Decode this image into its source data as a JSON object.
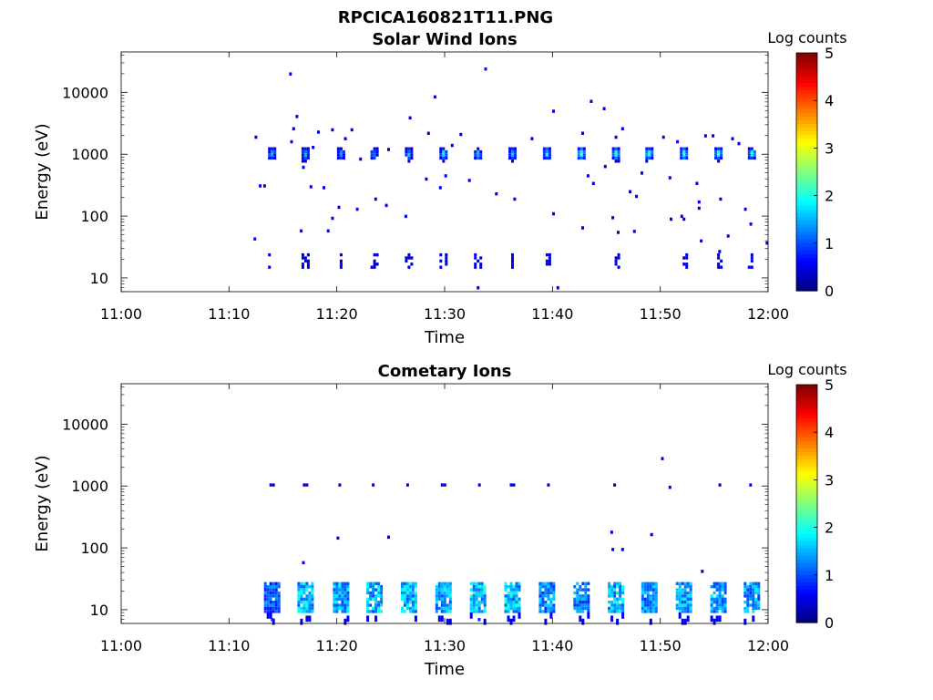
{
  "figure": {
    "title": "RPCICA160821T11.PNG"
  },
  "chart_data": [
    {
      "type": "heatmap",
      "title": "Solar Wind Ions",
      "xlabel": "Time",
      "ylabel": "Energy (eV)",
      "x_tick_labels": [
        "11:00",
        "11:10",
        "11:20",
        "11:30",
        "11:40",
        "11:50",
        "12:00"
      ],
      "x_range_minutes": [
        0,
        60
      ],
      "y_scale": "log",
      "y_tick_values": [
        10,
        100,
        1000,
        10000
      ],
      "y_tick_labels": [
        "10",
        "100",
        "1000",
        "10000"
      ],
      "y_range": [
        6,
        45000
      ],
      "colorbar": {
        "label": "Log counts",
        "range": [
          0,
          5
        ],
        "tick_labels": [
          "0",
          "1",
          "2",
          "3",
          "4",
          "5"
        ],
        "colormap": "jet"
      },
      "sweep_minutes": [
        14.0,
        17.1,
        20.4,
        23.5,
        26.7,
        29.9,
        33.1,
        36.3,
        39.5,
        42.7,
        45.9,
        49.0,
        52.2,
        55.4,
        58.5
      ],
      "main_band": {
        "energy_low": 800,
        "energy_high": 1300,
        "peak_log_counts": [
          1.9,
          1.8,
          1.6,
          1.5,
          1.8,
          2.0,
          2.0,
          1.9,
          2.1,
          2.5,
          2.4,
          2.5,
          2.3,
          2.5,
          2.2
        ]
      },
      "low_energy_band": {
        "energy_low": 15,
        "energy_high": 25,
        "log_counts": 0.5
      },
      "scatter_points": [
        {
          "t": 12.4,
          "e": 43,
          "c": 0.7
        },
        {
          "t": 12.5,
          "e": 1900,
          "c": 0.6
        },
        {
          "t": 12.9,
          "e": 310,
          "c": 0.5
        },
        {
          "t": 13.3,
          "e": 310,
          "c": 0.5
        },
        {
          "t": 15.7,
          "e": 20000,
          "c": 0.6
        },
        {
          "t": 15.8,
          "e": 1600,
          "c": 0.5
        },
        {
          "t": 16.0,
          "e": 2600,
          "c": 0.5
        },
        {
          "t": 16.3,
          "e": 4100,
          "c": 0.5
        },
        {
          "t": 16.7,
          "e": 58,
          "c": 0.5
        },
        {
          "t": 16.9,
          "e": 620,
          "c": 0.5
        },
        {
          "t": 17.6,
          "e": 300,
          "c": 0.5
        },
        {
          "t": 17.8,
          "e": 1300,
          "c": 0.5
        },
        {
          "t": 18.3,
          "e": 2300,
          "c": 0.5
        },
        {
          "t": 18.8,
          "e": 290,
          "c": 0.5
        },
        {
          "t": 19.2,
          "e": 58,
          "c": 0.5
        },
        {
          "t": 19.6,
          "e": 93,
          "c": 0.5
        },
        {
          "t": 19.6,
          "e": 2500,
          "c": 0.5
        },
        {
          "t": 20.2,
          "e": 140,
          "c": 0.5
        },
        {
          "t": 20.8,
          "e": 1800,
          "c": 0.5
        },
        {
          "t": 21.4,
          "e": 2500,
          "c": 0.5
        },
        {
          "t": 21.9,
          "e": 130,
          "c": 0.5
        },
        {
          "t": 22.2,
          "e": 840,
          "c": 0.5
        },
        {
          "t": 24.6,
          "e": 150,
          "c": 0.5
        },
        {
          "t": 24.8,
          "e": 1200,
          "c": 0.5
        },
        {
          "t": 26.4,
          "e": 100,
          "c": 0.5
        },
        {
          "t": 26.8,
          "e": 3900,
          "c": 0.5
        },
        {
          "t": 28.3,
          "e": 400,
          "c": 0.5
        },
        {
          "t": 28.5,
          "e": 2200,
          "c": 0.5
        },
        {
          "t": 29.1,
          "e": 8500,
          "c": 0.5
        },
        {
          "t": 29.6,
          "e": 290,
          "c": 0.5
        },
        {
          "t": 30.1,
          "e": 450,
          "c": 0.5
        },
        {
          "t": 30.7,
          "e": 1400,
          "c": 0.5
        },
        {
          "t": 31.5,
          "e": 2100,
          "c": 0.5
        },
        {
          "t": 32.3,
          "e": 380,
          "c": 0.5
        },
        {
          "t": 33.8,
          "e": 24000,
          "c": 0.7
        },
        {
          "t": 34.8,
          "e": 230,
          "c": 0.5
        },
        {
          "t": 36.5,
          "e": 190,
          "c": 0.5
        },
        {
          "t": 38.1,
          "e": 1800,
          "c": 0.5
        },
        {
          "t": 40.1,
          "e": 5000,
          "c": 0.5
        },
        {
          "t": 40.1,
          "e": 110,
          "c": 0.5
        },
        {
          "t": 42.8,
          "e": 65,
          "c": 0.3
        },
        {
          "t": 42.8,
          "e": 2200,
          "c": 0.5
        },
        {
          "t": 43.3,
          "e": 450,
          "c": 0.5
        },
        {
          "t": 43.6,
          "e": 7200,
          "c": 0.5
        },
        {
          "t": 43.8,
          "e": 340,
          "c": 0.5
        },
        {
          "t": 44.8,
          "e": 5500,
          "c": 0.5
        },
        {
          "t": 44.9,
          "e": 640,
          "c": 0.5
        },
        {
          "t": 45.6,
          "e": 95,
          "c": 0.5
        },
        {
          "t": 45.9,
          "e": 1900,
          "c": 0.5
        },
        {
          "t": 46.1,
          "e": 55,
          "c": 0.5
        },
        {
          "t": 46.5,
          "e": 2600,
          "c": 0.5
        },
        {
          "t": 47.2,
          "e": 250,
          "c": 0.5
        },
        {
          "t": 47.6,
          "e": 57,
          "c": 0.5
        },
        {
          "t": 47.8,
          "e": 210,
          "c": 0.5
        },
        {
          "t": 48.3,
          "e": 500,
          "c": 0.5
        },
        {
          "t": 50.3,
          "e": 1900,
          "c": 0.5
        },
        {
          "t": 50.9,
          "e": 420,
          "c": 0.5
        },
        {
          "t": 51.0,
          "e": 90,
          "c": 0.5
        },
        {
          "t": 51.6,
          "e": 1600,
          "c": 0.5
        },
        {
          "t": 52.0,
          "e": 100,
          "c": 0.5
        },
        {
          "t": 52.2,
          "e": 90,
          "c": 0.5
        },
        {
          "t": 53.4,
          "e": 340,
          "c": 0.5
        },
        {
          "t": 53.6,
          "e": 170,
          "c": 0.5
        },
        {
          "t": 53.6,
          "e": 135,
          "c": 0.5
        },
        {
          "t": 53.8,
          "e": 40,
          "c": 0.5
        },
        {
          "t": 54.2,
          "e": 2000,
          "c": 0.5
        },
        {
          "t": 54.9,
          "e": 2000,
          "c": 0.5
        },
        {
          "t": 55.5,
          "e": 27,
          "c": 0.5
        },
        {
          "t": 55.6,
          "e": 190,
          "c": 0.5
        },
        {
          "t": 56.3,
          "e": 48,
          "c": 0.5
        },
        {
          "t": 56.7,
          "e": 1800,
          "c": 0.5
        },
        {
          "t": 57.3,
          "e": 1500,
          "c": 0.5
        },
        {
          "t": 57.9,
          "e": 130,
          "c": 0.5
        },
        {
          "t": 58.4,
          "e": 75,
          "c": 0.5
        },
        {
          "t": 59.9,
          "e": 37,
          "c": 0.5
        },
        {
          "t": 33.1,
          "e": 7,
          "c": 0.5
        },
        {
          "t": 40.5,
          "e": 7,
          "c": 0.5
        },
        {
          "t": 23.6,
          "e": 190,
          "c": 0.5
        }
      ]
    },
    {
      "type": "heatmap",
      "title": "Cometary Ions",
      "xlabel": "Time",
      "ylabel": "Energy (eV)",
      "x_tick_labels": [
        "11:00",
        "11:10",
        "11:20",
        "11:30",
        "11:40",
        "11:50",
        "12:00"
      ],
      "x_range_minutes": [
        0,
        60
      ],
      "y_scale": "log",
      "y_tick_values": [
        10,
        100,
        1000,
        10000
      ],
      "y_tick_labels": [
        "10",
        "100",
        "1000",
        "10000"
      ],
      "y_range": [
        6,
        45000
      ],
      "colorbar": {
        "label": "Log counts",
        "range": [
          0,
          5
        ],
        "tick_labels": [
          "0",
          "1",
          "2",
          "3",
          "4",
          "5"
        ],
        "colormap": "jet"
      },
      "sweep_minutes": [
        14.0,
        17.1,
        20.4,
        23.5,
        26.7,
        29.9,
        33.1,
        36.3,
        39.5,
        42.7,
        45.9,
        49.0,
        52.2,
        55.4,
        58.5
      ],
      "main_band": {
        "energy_low": 960,
        "energy_high": 1100,
        "peak_log_counts": [
          0.7,
          0.6,
          0.6,
          0.6,
          0.6,
          0.6,
          0.6,
          0.6,
          0.6,
          0.6,
          0.6,
          0.7,
          0.7,
          0.7,
          0.7
        ]
      },
      "low_energy_band": {
        "energy_low": 9,
        "energy_high": 28,
        "peak_log_counts": [
          1.2,
          1.8,
          1.7,
          1.7,
          1.8,
          1.7,
          1.9,
          1.9,
          1.5,
          1.4,
          1.8,
          1.5,
          1.7,
          1.6,
          1.6
        ]
      },
      "scatter_points": [
        {
          "t": 16.9,
          "e": 58,
          "c": 0.5
        },
        {
          "t": 20.1,
          "e": 145,
          "c": 0.5
        },
        {
          "t": 24.8,
          "e": 150,
          "c": 0.5
        },
        {
          "t": 45.5,
          "e": 180,
          "c": 0.5
        },
        {
          "t": 45.6,
          "e": 95,
          "c": 0.5
        },
        {
          "t": 46.5,
          "e": 95,
          "c": 0.5
        },
        {
          "t": 49.2,
          "e": 165,
          "c": 0.5
        },
        {
          "t": 50.2,
          "e": 2800,
          "c": 0.5
        },
        {
          "t": 50.9,
          "e": 960,
          "c": 0.5
        },
        {
          "t": 53.9,
          "e": 42,
          "c": 0.5
        },
        {
          "t": 33.2,
          "e": 7,
          "c": 0.8
        },
        {
          "t": 14.0,
          "e": 7,
          "c": 0.8
        }
      ]
    }
  ]
}
